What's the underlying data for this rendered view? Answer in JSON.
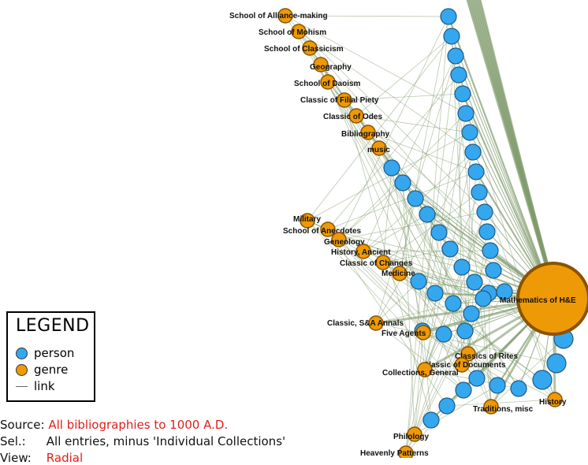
{
  "colors": {
    "person": "#35a7ee",
    "person_stroke": "#1f5a86",
    "genre": "#ee9a06",
    "genre_stroke": "#8a5200",
    "edge": "#7f9a6c",
    "accent": "#e0201a"
  },
  "legend": {
    "title": "LEGEND",
    "items": [
      {
        "label": "person",
        "icon": "circle-blue"
      },
      {
        "label": "genre",
        "icon": "circle-orange"
      },
      {
        "label": "link",
        "icon": "line-gray"
      }
    ]
  },
  "info": {
    "source_label": "Source:",
    "source_value": "All bibliographies to 1000 A.D.",
    "sel_label": "Sel.:",
    "sel_value": "All entries, minus 'Individual Collections'",
    "view_label": "View:",
    "view_value": "Radial"
  },
  "hub": {
    "label": "Mathematics of H&E"
  },
  "genres": [
    {
      "label": "School of Alliance-making"
    },
    {
      "label": "School of Mohism"
    },
    {
      "label": "School of Classicism"
    },
    {
      "label": "Geography"
    },
    {
      "label": "School of Daoism"
    },
    {
      "label": "Classic of Filial Piety"
    },
    {
      "label": "Classic of Odes"
    },
    {
      "label": "Bibliography"
    },
    {
      "label": "music"
    },
    {
      "label": "Military"
    },
    {
      "label": "School of Anecdotes"
    },
    {
      "label": "Geneology"
    },
    {
      "label": "History, Ancient"
    },
    {
      "label": "Classic of Changes"
    },
    {
      "label": "Medicine"
    },
    {
      "label": "Classic, S&A Annals"
    },
    {
      "label": "Five Agents"
    },
    {
      "label": "Classics of Rites"
    },
    {
      "label": "Classic of Documents"
    },
    {
      "label": "Collections, General"
    },
    {
      "label": "Traditions, misc"
    },
    {
      "label": "History"
    },
    {
      "label": "Philology"
    },
    {
      "label": "Heavenly Patterns"
    }
  ]
}
